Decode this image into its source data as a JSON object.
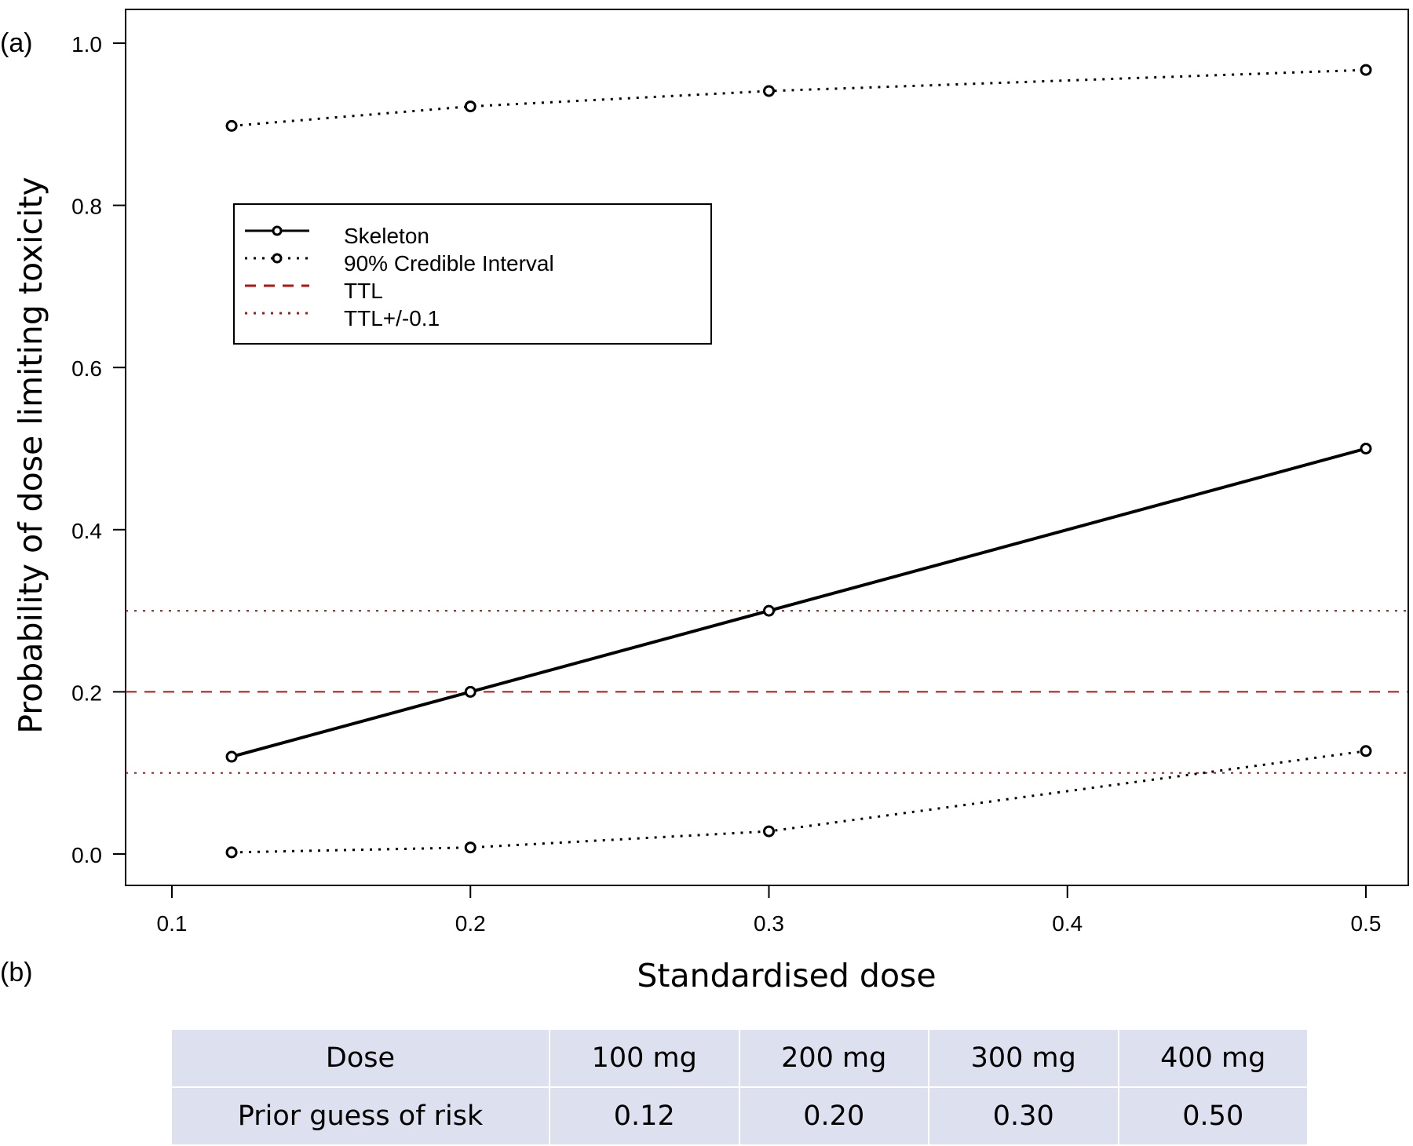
{
  "panel_a_label": "(a)",
  "panel_b_label": "(b)",
  "chart_data": {
    "type": "line",
    "xlabel": "Standardised dose",
    "ylabel": "Probability of dose limiting toxicity",
    "xlim": [
      0.1,
      0.5
    ],
    "ylim": [
      0.0,
      1.0
    ],
    "xticks": [
      0.1,
      0.2,
      0.3,
      0.4,
      0.5
    ],
    "yticks": [
      0.0,
      0.2,
      0.4,
      0.6,
      0.8,
      1.0
    ],
    "xtick_labels": [
      "0.1",
      "0.2",
      "0.3",
      "0.4",
      "0.5"
    ],
    "ytick_labels": [
      "0.0",
      "0.2",
      "0.4",
      "0.6",
      "0.8",
      "1.0"
    ],
    "x": [
      0.12,
      0.2,
      0.3,
      0.5
    ],
    "series": [
      {
        "name": "Skeleton",
        "style": "solid",
        "color": "#000000",
        "values": [
          0.12,
          0.2,
          0.3,
          0.5
        ]
      },
      {
        "name": "90% Credible Interval",
        "style": "dotted",
        "color": "#000000",
        "values": [
          0.898,
          0.922,
          0.941,
          0.967
        ]
      },
      {
        "name": "90% Credible Interval",
        "style": "dotted",
        "color": "#000000",
        "values": [
          0.002,
          0.008,
          0.028,
          0.127
        ]
      }
    ],
    "hlines": [
      {
        "name": "TTL",
        "value": 0.2,
        "style": "dashed",
        "color": "#a31a1a"
      },
      {
        "name": "TTL+/-0.1",
        "value": 0.1,
        "style": "dotted",
        "color": "#a31a1a"
      },
      {
        "name": "TTL+/-0.1",
        "value": 0.3,
        "style": "dotted",
        "color": "#a31a1a"
      }
    ],
    "legend": {
      "position": "upper-left",
      "entries": [
        {
          "label": "Skeleton",
          "style": "solid-marker",
          "color": "#000000"
        },
        {
          "label": "90% Credible Interval",
          "style": "dotted-marker",
          "color": "#000000"
        },
        {
          "label": "TTL",
          "style": "dashed",
          "color": "#a31a1a"
        },
        {
          "label": "TTL+/-0.1",
          "style": "dotted",
          "color": "#a31a1a"
        }
      ]
    },
    "grid": false
  },
  "table": {
    "headers": [
      "Dose",
      "100 mg",
      "200 mg",
      "300 mg",
      "400 mg"
    ],
    "rows": [
      [
        "Prior guess of risk",
        "0.12",
        "0.20",
        "0.30",
        "0.50"
      ]
    ]
  }
}
